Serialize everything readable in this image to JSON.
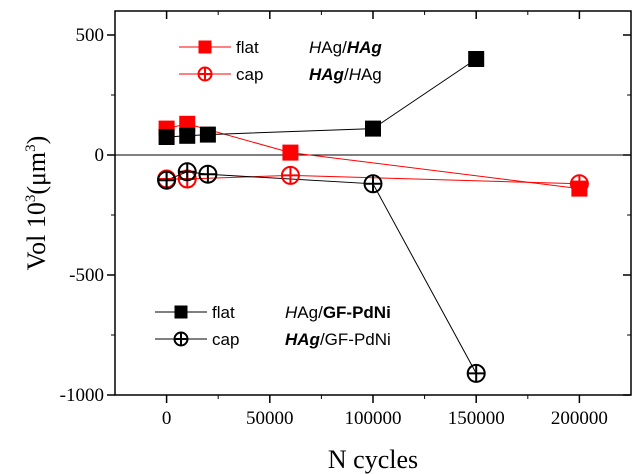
{
  "chart_data": {
    "type": "scatter",
    "xlabel": "N cycles",
    "ylabel": {
      "base": "Vol 10",
      "base_sup": "3",
      "unit_open": "(μm",
      "unit_sup": "3",
      "unit_close": ")"
    },
    "xlim": [
      -25000,
      225000
    ],
    "ylim": [
      -1000,
      600
    ],
    "xticks": [
      0,
      50000,
      100000,
      150000,
      200000
    ],
    "xtick_labels": [
      "0",
      "50000",
      "100000",
      "150000",
      "200000"
    ],
    "yticks": [
      -1000,
      -500,
      0,
      500
    ],
    "ytick_labels": [
      "-1000",
      "-500",
      "0",
      "500"
    ],
    "zero_line": true,
    "grid": false,
    "series": [
      {
        "name": "flat HAg/HAg",
        "legend": {
          "kind": "flat",
          "parts": [
            [
              "H",
              true,
              false
            ],
            [
              "Ag/",
              false,
              false
            ],
            [
              "HAg",
              true,
              true
            ]
          ]
        },
        "color": "#ff0000",
        "marker": "square",
        "x": [
          0,
          10000,
          60000,
          200000
        ],
        "y": [
          110,
          130,
          10,
          -140
        ]
      },
      {
        "name": "cap HAg/HAg",
        "legend": {
          "kind": "cap",
          "parts": [
            [
              "HAg",
              true,
              true
            ],
            [
              "/",
              false,
              false
            ],
            [
              "H",
              true,
              false
            ],
            [
              "Ag",
              false,
              false
            ]
          ]
        },
        "color": "#ff0000",
        "marker": "circle-plus",
        "x": [
          0,
          10000,
          60000,
          200000
        ],
        "y": [
          -100,
          -100,
          -85,
          -120
        ]
      },
      {
        "name": "flat HAg/GF-PdNi",
        "legend": {
          "kind": "flat",
          "parts": [
            [
              "H",
              true,
              false
            ],
            [
              "Ag/",
              false,
              false
            ],
            [
              "GF-PdNi",
              false,
              true
            ]
          ]
        },
        "color": "#000000",
        "marker": "square",
        "x": [
          0,
          10000,
          20000,
          100000,
          150000
        ],
        "y": [
          75,
          80,
          85,
          110,
          400
        ]
      },
      {
        "name": "cap HAg/GF-PdNi",
        "legend": {
          "kind": "cap",
          "parts": [
            [
              "HAg",
              true,
              true
            ],
            [
              "/GF-PdNi",
              false,
              false
            ]
          ]
        },
        "color": "#000000",
        "marker": "circle-plus",
        "x": [
          0,
          10000,
          20000,
          100000,
          150000
        ],
        "y": [
          -105,
          -70,
          -80,
          -120,
          -910
        ]
      }
    ]
  }
}
